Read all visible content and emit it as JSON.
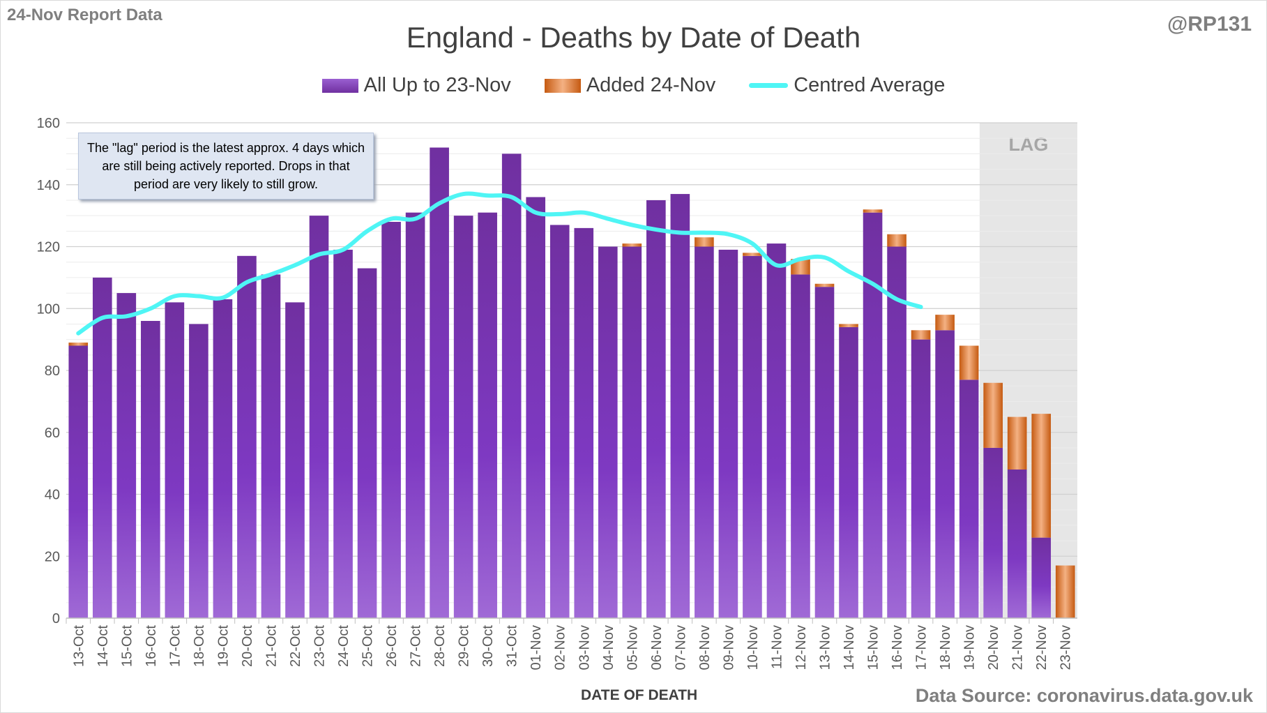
{
  "header": {
    "report_label": "24-Nov Report Data",
    "handle": "@RP131",
    "source": "Data Source: coronavirus.data.gov.uk"
  },
  "note": {
    "text": "The \"lag\" period is the latest approx. 4 days which are still being actively reported. Drops in that period are very likely to still grow."
  },
  "colors": {
    "purple": "#7030a0",
    "orange": "#c55a11",
    "cyan": "#4ff5f5",
    "lag_shade": "#e6e6e6"
  },
  "chart_data": {
    "type": "bar",
    "title": "England - Deaths by Date of Death",
    "xlabel": "DATE OF DEATH",
    "ylabel": "",
    "ylim": [
      0,
      160
    ],
    "yticks": [
      0,
      20,
      40,
      60,
      80,
      100,
      120,
      140,
      160
    ],
    "grid": true,
    "legend_position": "top",
    "stacked": true,
    "lag_label": "LAG",
    "lag_categories": [
      "20-Nov",
      "21-Nov",
      "22-Nov",
      "23-Nov"
    ],
    "categories": [
      "13-Oct",
      "14-Oct",
      "15-Oct",
      "16-Oct",
      "17-Oct",
      "18-Oct",
      "19-Oct",
      "20-Oct",
      "21-Oct",
      "22-Oct",
      "23-Oct",
      "24-Oct",
      "25-Oct",
      "26-Oct",
      "27-Oct",
      "28-Oct",
      "29-Oct",
      "30-Oct",
      "31-Oct",
      "01-Nov",
      "02-Nov",
      "03-Nov",
      "04-Nov",
      "05-Nov",
      "06-Nov",
      "07-Nov",
      "08-Nov",
      "09-Nov",
      "10-Nov",
      "11-Nov",
      "12-Nov",
      "13-Nov",
      "14-Nov",
      "15-Nov",
      "16-Nov",
      "17-Nov",
      "18-Nov",
      "19-Nov",
      "20-Nov",
      "21-Nov",
      "22-Nov",
      "23-Nov"
    ],
    "series": [
      {
        "name": "All Up to 23-Nov",
        "kind": "bar",
        "values": [
          88,
          110,
          105,
          96,
          102,
          95,
          103,
          117,
          111,
          102,
          130,
          119,
          113,
          128,
          131,
          152,
          130,
          131,
          150,
          136,
          127,
          126,
          120,
          120,
          135,
          137,
          120,
          119,
          117,
          121,
          111,
          107,
          94,
          131,
          120,
          90,
          93,
          77,
          55,
          48,
          26,
          0
        ]
      },
      {
        "name": "Added 24-Nov",
        "kind": "bar",
        "values": [
          1,
          0,
          0,
          0,
          0,
          0,
          0,
          0,
          0,
          0,
          0,
          0,
          0,
          0,
          0,
          0,
          0,
          0,
          0,
          0,
          0,
          0,
          0,
          1,
          0,
          0,
          3,
          0,
          1,
          0,
          5,
          1,
          1,
          1,
          4,
          3,
          5,
          11,
          21,
          17,
          40,
          17
        ]
      },
      {
        "name": "Centred Average",
        "kind": "line",
        "values": [
          92,
          97,
          97.5,
          100,
          104,
          104,
          103.5,
          108.5,
          111,
          114,
          117.5,
          119,
          125,
          129,
          129,
          134,
          137,
          136.5,
          136,
          131,
          130.5,
          131,
          129,
          127,
          125.5,
          124.5,
          124.5,
          124,
          121,
          114,
          116,
          116.5,
          112,
          108,
          103,
          100.5,
          null,
          null,
          null,
          null,
          null,
          null
        ]
      }
    ]
  }
}
